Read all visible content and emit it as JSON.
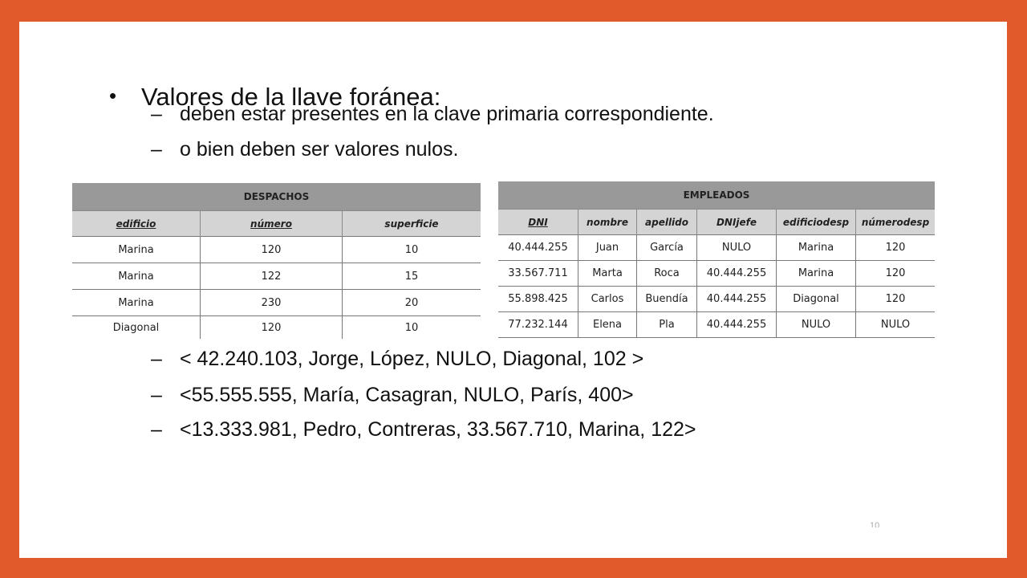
{
  "bullets": {
    "main": "Valores de la llave foránea:",
    "sub1": "deben estar presentes en la clave primaria correspondiente.",
    "sub2": "o bien deben ser valores nulos.",
    "ex1": "< 42.240.103, Jorge, López, NULO, Diagonal, 102 >",
    "ex2": "<55.555.555, María, Casagran, NULO, París, 400>",
    "ex3": "<13.333.981, Pedro, Contreras, 33.567.710, Marina, 122>",
    "dot": "•",
    "dash": "–"
  },
  "despachos": {
    "title": "DESPACHOS",
    "headers": [
      "edificio",
      "número",
      "superficie"
    ],
    "rows": [
      [
        "Marina",
        "120",
        "10"
      ],
      [
        "Marina",
        "122",
        "15"
      ],
      [
        "Marina",
        "230",
        "20"
      ],
      [
        "Diagonal",
        "120",
        "10"
      ]
    ]
  },
  "empleados": {
    "title": "EMPLEADOS",
    "headers": [
      "DNI",
      "nombre",
      "apellido",
      "DNIjefe",
      "edificiodesp",
      "númerodesp"
    ],
    "rows": [
      [
        "40.444.255",
        "Juan",
        "García",
        "NULO",
        "Marina",
        "120"
      ],
      [
        "33.567.711",
        "Marta",
        "Roca",
        "40.444.255",
        "Marina",
        "120"
      ],
      [
        "55.898.425",
        "Carlos",
        "Buendía",
        "40.444.255",
        "Diagonal",
        "120"
      ],
      [
        "77.232.144",
        "Elena",
        "Pla",
        "40.444.255",
        "NULO",
        "NULO"
      ]
    ]
  },
  "page_number": "10"
}
